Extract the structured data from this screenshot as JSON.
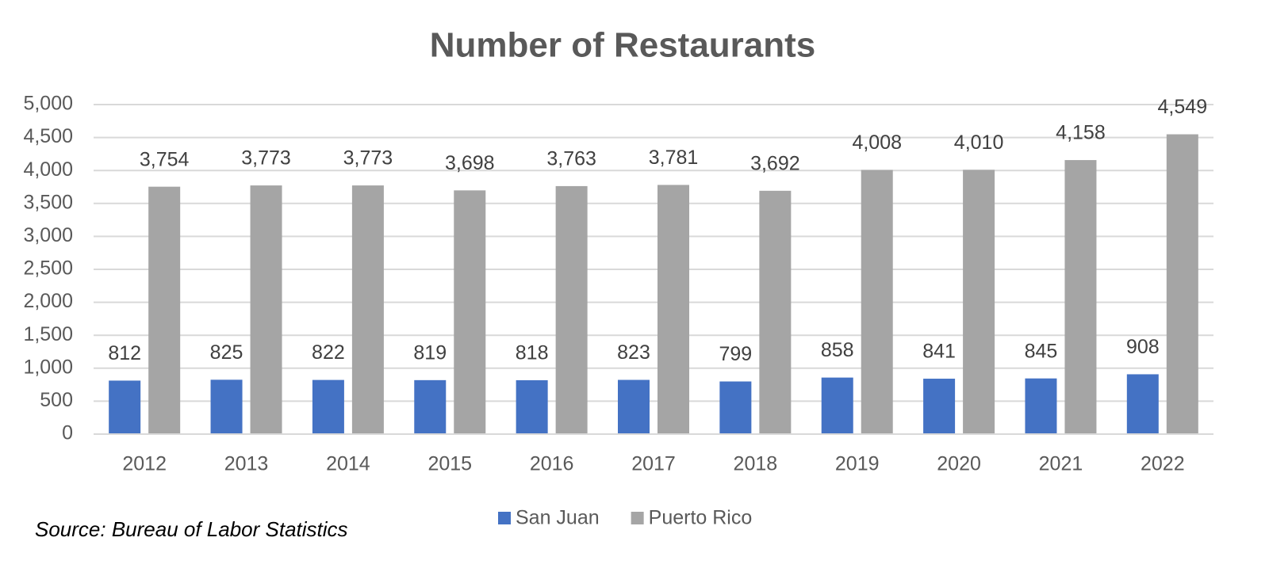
{
  "chart_data": {
    "type": "bar",
    "title": "Number of Restaurants",
    "source": "Source: Bureau of Labor Statistics",
    "categories": [
      "2012",
      "2013",
      "2014",
      "2015",
      "2016",
      "2017",
      "2018",
      "2019",
      "2020",
      "2021",
      "2022"
    ],
    "series": [
      {
        "name": "San Juan",
        "color": "#4472c4",
        "values": [
          812,
          825,
          822,
          819,
          818,
          823,
          799,
          858,
          841,
          845,
          908
        ],
        "value_labels": [
          "812",
          "825",
          "822",
          "819",
          "818",
          "823",
          "799",
          "858",
          "841",
          "845",
          "908"
        ]
      },
      {
        "name": "Puerto Rico",
        "color": "#a5a5a5",
        "values": [
          3754,
          3773,
          3773,
          3698,
          3763,
          3781,
          3692,
          4008,
          4010,
          4158,
          4549
        ],
        "value_labels": [
          "3,754",
          "3,773",
          "3,773",
          "3,698",
          "3,763",
          "3,781",
          "3,692",
          "4,008",
          "4,010",
          "4,158",
          "4,549"
        ]
      }
    ],
    "ylim": [
      0,
      5000
    ],
    "yticks": [
      0,
      500,
      {
        "value": 1000,
        "label": "1,000"
      },
      {
        "value": 1500,
        "label": "1,500"
      },
      {
        "value": 2000,
        "label": "2,000"
      },
      {
        "value": 2500,
        "label": "2,500"
      },
      {
        "value": 3000,
        "label": "3,000"
      },
      {
        "value": 3500,
        "label": "3,500"
      },
      {
        "value": 4000,
        "label": "4,000"
      },
      {
        "value": 4500,
        "label": "4,500"
      },
      {
        "value": 5000,
        "label": "5,000"
      }
    ],
    "grid": true,
    "legend": "bottom"
  }
}
